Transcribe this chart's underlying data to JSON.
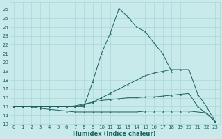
{
  "xlabel": "Humidex (Indice chaleur)",
  "bg_color": "#c8eaea",
  "grid_color": "#a8d8d8",
  "line_color": "#1a6060",
  "xlim": [
    -0.5,
    23.5
  ],
  "ylim": [
    13.0,
    26.8
  ],
  "xticks": [
    0,
    1,
    2,
    3,
    4,
    5,
    6,
    7,
    8,
    9,
    10,
    11,
    12,
    13,
    14,
    15,
    16,
    17,
    18,
    19,
    20,
    21,
    22,
    23
  ],
  "yticks": [
    13,
    14,
    15,
    16,
    17,
    18,
    19,
    20,
    21,
    22,
    23,
    24,
    25,
    26
  ],
  "series": [
    {
      "x": [
        0,
        1,
        2,
        3,
        4,
        5,
        6,
        7,
        8,
        9,
        10,
        11,
        12,
        13,
        14,
        15,
        16,
        17,
        18
      ],
      "y": [
        15,
        15,
        15,
        15,
        15,
        15,
        15,
        15,
        15,
        17.8,
        21.0,
        23.3,
        26.1,
        25.2,
        24.0,
        23.5,
        22.2,
        21.0,
        19.0
      ]
    },
    {
      "x": [
        0,
        1,
        2,
        3,
        4,
        5,
        6,
        7,
        8,
        9,
        10,
        11,
        12,
        13,
        14,
        15,
        16,
        17,
        18,
        19,
        20,
        21,
        22,
        23
      ],
      "y": [
        15,
        15,
        15,
        15,
        15,
        15,
        15,
        15,
        15.2,
        15.5,
        16.0,
        16.5,
        17.0,
        17.5,
        18.0,
        18.5,
        18.8,
        19.0,
        19.2,
        19.2,
        19.2,
        16.4,
        15.0,
        13.3
      ]
    },
    {
      "x": [
        0,
        1,
        2,
        3,
        4,
        5,
        6,
        7,
        8,
        9,
        10,
        11,
        12,
        13,
        14,
        15,
        16,
        17,
        18,
        19,
        20,
        21,
        22,
        23
      ],
      "y": [
        15,
        15,
        15,
        15,
        15,
        15,
        15,
        15.1,
        15.3,
        15.5,
        15.7,
        15.8,
        15.9,
        16.0,
        16.0,
        16.1,
        16.1,
        16.2,
        16.3,
        16.4,
        16.5,
        15.0,
        14.2,
        13.3
      ]
    },
    {
      "x": [
        0,
        1,
        2,
        3,
        4,
        5,
        6,
        7,
        8,
        9,
        10,
        11,
        12,
        13,
        14,
        15,
        16,
        17,
        18,
        19,
        20,
        21,
        22,
        23
      ],
      "y": [
        15,
        15,
        15,
        14.8,
        14.7,
        14.6,
        14.5,
        14.4,
        14.4,
        14.4,
        14.4,
        14.4,
        14.4,
        14.4,
        14.4,
        14.5,
        14.5,
        14.5,
        14.5,
        14.5,
        14.5,
        14.4,
        14.3,
        13.3
      ]
    }
  ]
}
